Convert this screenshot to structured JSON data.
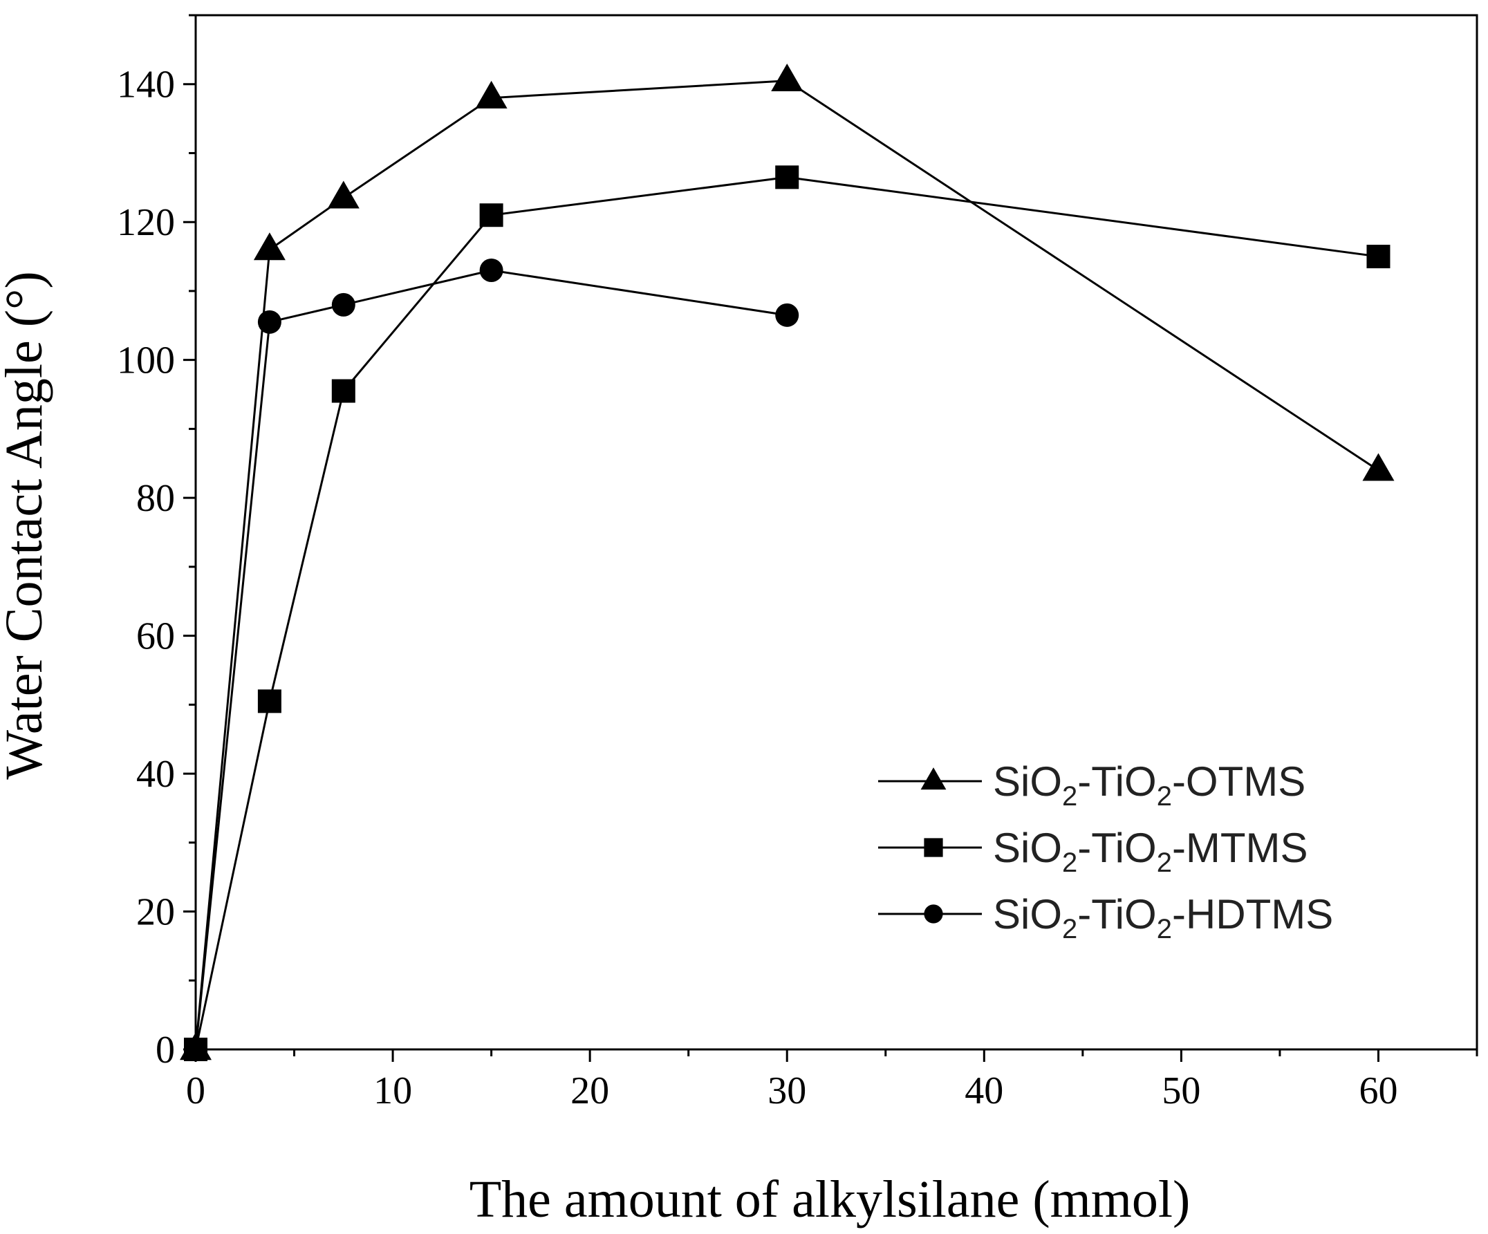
{
  "chart_data": {
    "type": "line",
    "xlabel": "The amount of alkylsilane (mmol)",
    "ylabel": "Water Contact Angle (°)",
    "xlim": [
      0,
      65
    ],
    "ylim": [
      0,
      150
    ],
    "xticks": [
      "0",
      "10",
      "20",
      "30",
      "40",
      "50",
      "60"
    ],
    "yticks": [
      "0",
      "20",
      "40",
      "60",
      "80",
      "100",
      "120",
      "140"
    ],
    "grid": false,
    "legend_position": "bottom-right",
    "series": [
      {
        "name": "SiO2-TiO2-OTMS",
        "name_parts": [
          "SiO",
          "2",
          "-TiO",
          "2",
          "-OTMS"
        ],
        "marker": "triangle",
        "color": "#000000",
        "x": [
          0,
          3.75,
          7.5,
          15,
          30,
          60
        ],
        "y": [
          0,
          116,
          123.5,
          138,
          140.5,
          84
        ]
      },
      {
        "name": "SiO2-TiO2-MTMS",
        "name_parts": [
          "SiO",
          "2",
          "-TiO",
          "2",
          "-MTMS"
        ],
        "marker": "square",
        "color": "#000000",
        "x": [
          0,
          3.75,
          7.5,
          15,
          30,
          60
        ],
        "y": [
          0,
          50.5,
          95.5,
          121,
          126.5,
          115
        ]
      },
      {
        "name": "SiO2-TiO2-HDTMS",
        "name_parts": [
          "SiO",
          "2",
          "-TiO",
          "2",
          "-HDTMS"
        ],
        "marker": "circle",
        "color": "#000000",
        "x": [
          0,
          3.75,
          7.5,
          15,
          30
        ],
        "y": [
          0,
          105.5,
          108,
          113,
          106.5
        ]
      }
    ]
  }
}
